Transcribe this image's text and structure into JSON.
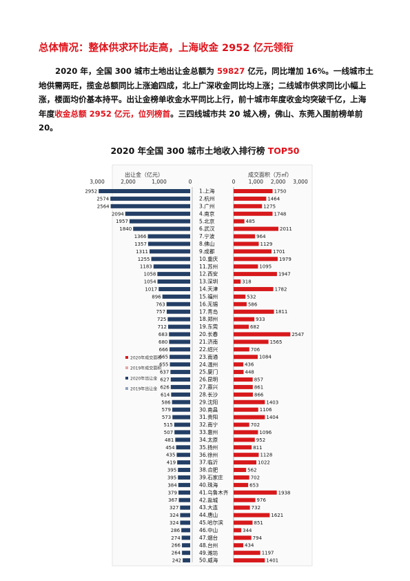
{
  "heading": "总体情况：整体供求环比走高，上海收金 2952 亿元领衔",
  "paragraph": {
    "s1": "2020 年，全国 300 城市土地出让金总额为 ",
    "s2": "59827",
    "s3": " 亿元，同比增加 16%。一线城市土地供需两旺，揽金总额同比上涨逾四成，北上广深收金同比均上涨；二线城市供求同比小幅上涨，楼面均价基本持平。出让金榜单收金水平同比上行，前十城市年度收金均突破千亿，上海年度",
    "s4": "收金总额 2952 亿元，位列榜首",
    "s5": "。三四线城市共 20 城入榜，佛山、东莞入围前榜单前 20。"
  },
  "chart_title": {
    "main": "2020 年全国 300 城市土地收入排行榜 ",
    "highlight": "TOP50"
  },
  "colors": {
    "accent": "#e0121a",
    "bar_left": "#243f66",
    "bar_left_prev": "#8ea2bf",
    "bar_right": "#d7191c",
    "bar_right_prev": "#e6a5a5"
  },
  "chart_data": {
    "type": "bar",
    "left_axis": {
      "label": "出让金（亿元）",
      "ticks": [
        "3,000",
        "2,000",
        "1,000",
        "0"
      ],
      "range": [
        3000,
        0
      ]
    },
    "right_axis": {
      "label": "成交面积（万㎡）",
      "ticks": [
        "0",
        "1,000",
        "2,000",
        "3,000"
      ],
      "range": [
        0,
        3000
      ]
    },
    "legend": [
      "2020年成交面积",
      "2019年成交面积",
      "2020年出让金",
      "2019年出让金"
    ],
    "cities": [
      "1.上海",
      "2.杭州",
      "3.广州",
      "4.南京",
      "5.北京",
      "6.武汉",
      "7.宁波",
      "8.佛山",
      "9.成都",
      "10.重庆",
      "11.苏州",
      "12.西安",
      "13.深圳",
      "14.天津",
      "15.福州",
      "16.无锡",
      "17.青岛",
      "18.郑州",
      "19.东莞",
      "20.长春",
      "21.济南",
      "22.绍兴",
      "23.南通",
      "24.温州",
      "25.厦门",
      "26.昆明",
      "27.嘉兴",
      "28.长沙",
      "29.沈阳",
      "30.南昌",
      "31.贵阳",
      "32.南宁",
      "33.惠州",
      "34.太原",
      "35.扬州",
      "36.徐州",
      "37.临沂",
      "38.合肥",
      "39.石家庄",
      "40.珠海",
      "41.乌鲁木齐",
      "42.盐城",
      "43.大连",
      "44.唐山",
      "45.哈尔滨",
      "46.中山",
      "47.烟台",
      "48.台州",
      "49.潍坊",
      "50.威海"
    ],
    "revenue_2020": [
      2952,
      2574,
      2564,
      2094,
      1957,
      1840,
      1366,
      1357,
      1311,
      1255,
      1183,
      1058,
      1054,
      1017,
      896,
      763,
      757,
      725,
      712,
      683,
      680,
      666,
      665,
      655,
      637,
      627,
      626,
      614,
      586,
      579,
      573,
      515,
      507,
      481,
      454,
      435,
      419,
      395,
      395,
      384,
      379,
      367,
      327,
      324,
      324,
      286,
      274,
      266,
      264,
      242
    ],
    "area_2020": [
      1750,
      1464,
      1275,
      1748,
      485,
      2011,
      964,
      1129,
      1701,
      1979,
      1095,
      1947,
      318,
      1782,
      532,
      586,
      1811,
      933,
      682,
      2547,
      1565,
      706,
      1084,
      436,
      448,
      857,
      861,
      866,
      1403,
      1106,
      1404,
      702,
      1096,
      952,
      811,
      1128,
      1022,
      562,
      702,
      653,
      1938,
      976,
      732,
      1621,
      851,
      344,
      794,
      434,
      1197,
      1401
    ]
  }
}
